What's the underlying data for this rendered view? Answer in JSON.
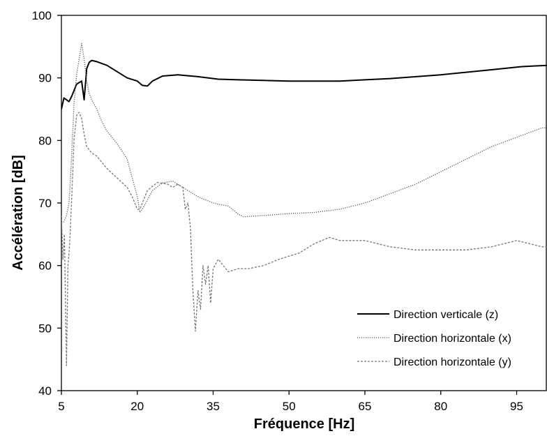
{
  "chart_data": {
    "type": "line",
    "title": "",
    "xlabel": "Fréquence [Hz]",
    "ylabel": "Accélération [dB]",
    "xlim": [
      5,
      101
    ],
    "ylim": [
      40,
      100
    ],
    "x_ticks": [
      5,
      20,
      35,
      50,
      65,
      80,
      95
    ],
    "y_ticks": [
      40,
      50,
      60,
      70,
      80,
      90,
      100
    ],
    "grid": false,
    "legend_position": "bottom-right",
    "series": [
      {
        "name": "Direction verticale (z)",
        "style": "solid",
        "color": "#000000",
        "x": [
          5,
          5.5,
          6,
          6.5,
          7,
          8,
          9,
          9.5,
          10,
          10.5,
          11,
          12,
          14,
          16,
          18,
          20,
          21,
          22,
          23,
          25,
          28,
          32,
          36,
          40,
          50,
          60,
          70,
          80,
          90,
          96,
          101
        ],
        "y": [
          85,
          86.8,
          86.5,
          86.2,
          87,
          89,
          89.5,
          86.5,
          91.5,
          92.5,
          92.8,
          92.6,
          92,
          91,
          90,
          89.5,
          88.8,
          88.7,
          89.5,
          90.3,
          90.5,
          90.2,
          89.8,
          89.7,
          89.5,
          89.5,
          89.9,
          90.5,
          91.3,
          91.8,
          92
        ]
      },
      {
        "name": "Direction horizontale (x)",
        "style": "dotted",
        "color": "#555555",
        "x": [
          5,
          5.5,
          6,
          6.5,
          7,
          7.5,
          8,
          8.5,
          9,
          9.5,
          10,
          10.5,
          11,
          12,
          13,
          14,
          16,
          18,
          19,
          20,
          20.5,
          21,
          22,
          23,
          25,
          27,
          28,
          30,
          32,
          35,
          38,
          40,
          41,
          45,
          50,
          55,
          60,
          65,
          70,
          75,
          80,
          85,
          90,
          95,
          100,
          101
        ],
        "y": [
          67,
          67,
          68,
          70,
          77,
          86,
          90.5,
          93,
          95.5,
          93,
          89.5,
          87.5,
          86.5,
          85,
          83,
          81.5,
          79.5,
          77,
          74,
          71,
          68.5,
          69,
          70.5,
          72,
          73.2,
          73.5,
          73,
          72,
          71,
          70,
          69.5,
          68.2,
          67.8,
          68,
          68.3,
          68.5,
          69,
          70,
          71.5,
          73,
          75,
          77,
          79,
          80.5,
          82,
          82
        ]
      },
      {
        "name": "Direction horizontale (y)",
        "style": "dashed",
        "color": "#777777",
        "x": [
          5,
          5.3,
          5.6,
          6,
          6.3,
          6.6,
          7,
          7.5,
          8,
          8.5,
          9,
          9.5,
          10,
          10.5,
          11,
          12,
          14,
          16,
          18,
          19,
          20,
          20.5,
          21,
          22,
          24,
          26,
          27,
          28,
          29,
          29.5,
          30,
          30.5,
          31,
          31.5,
          32,
          32.5,
          33,
          33.5,
          34,
          34.5,
          35,
          36,
          37,
          38,
          40,
          42,
          45,
          48,
          50,
          52,
          55,
          58,
          60,
          65,
          70,
          75,
          80,
          85,
          90,
          95,
          100,
          101
        ],
        "y": [
          68,
          61,
          65,
          44,
          60,
          63,
          70,
          80,
          84,
          84.5,
          83.5,
          81,
          79,
          78.5,
          78,
          77.5,
          75.5,
          74,
          72.5,
          71,
          69,
          69,
          70,
          72,
          73.3,
          73,
          72.5,
          73,
          72.5,
          69,
          70,
          66,
          56,
          49.5,
          56,
          53,
          60,
          57,
          60,
          54,
          59.5,
          61,
          60,
          59,
          59.5,
          59.5,
          60,
          61,
          61.5,
          62,
          63.5,
          64.5,
          64,
          64,
          63,
          62.5,
          62.5,
          62.5,
          63,
          64,
          63,
          63
        ]
      }
    ]
  }
}
